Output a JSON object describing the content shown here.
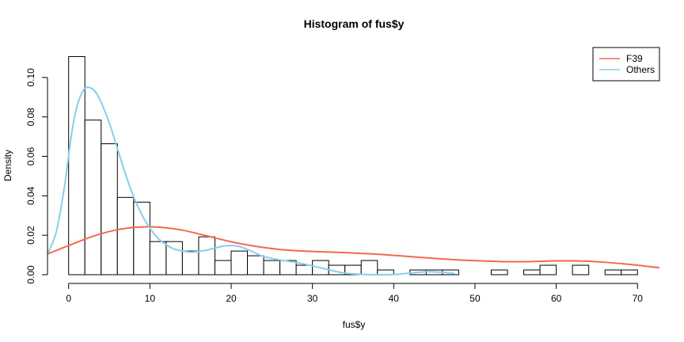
{
  "chart_data": {
    "type": "histogram",
    "title": "Histogram of fus$y",
    "xlabel": "fus$y",
    "ylabel": "Density",
    "xlim": [
      -2.6,
      72.7
    ],
    "ylim": [
      0,
      0.114
    ],
    "x_ticks": [
      0,
      10,
      20,
      30,
      40,
      50,
      60,
      70
    ],
    "y_ticks": [
      0.0,
      0.02,
      0.04,
      0.06,
      0.08,
      0.1
    ],
    "y_tick_labels": [
      "0.00",
      "0.02",
      "0.04",
      "0.06",
      "0.08",
      "0.10"
    ],
    "bin_width": 2,
    "bins_start": 0,
    "densities": [
      0.1106,
      0.0784,
      0.0664,
      0.0392,
      0.0368,
      0.0168,
      0.0168,
      0.012,
      0.0192,
      0.0072,
      0.012,
      0.0096,
      0.0072,
      0.0072,
      0.0048,
      0.0072,
      0.0048,
      0.0048,
      0.0072,
      0.0024,
      0,
      0.0024,
      0.0024,
      0.0024,
      0,
      0,
      0.0024,
      0,
      0.0024,
      0.0048,
      0,
      0.0048,
      0,
      0.0024,
      0.0024
    ],
    "series": [
      {
        "name": "F39",
        "color": "#f4694e",
        "x": [
          -2.6,
          0,
          2,
          4,
          6,
          8,
          10,
          12,
          14,
          16,
          18,
          20,
          22,
          24,
          26,
          28,
          30,
          32,
          34,
          36,
          38,
          40,
          42,
          44,
          46,
          48,
          50,
          52,
          54,
          56,
          58,
          60,
          62,
          64,
          66,
          68,
          70,
          72.7
        ],
        "y": [
          0.0105,
          0.0148,
          0.018,
          0.0208,
          0.0228,
          0.024,
          0.0243,
          0.0238,
          0.0226,
          0.0207,
          0.0187,
          0.0167,
          0.0151,
          0.0138,
          0.0128,
          0.0122,
          0.0118,
          0.0115,
          0.0112,
          0.0108,
          0.0104,
          0.0098,
          0.0092,
          0.0086,
          0.008,
          0.0075,
          0.0071,
          0.0068,
          0.0066,
          0.0066,
          0.0068,
          0.007,
          0.007,
          0.0068,
          0.0063,
          0.0056,
          0.0048,
          0.0035
        ]
      },
      {
        "name": "Others",
        "color": "#87ceeb",
        "x": [
          -2.6,
          -1.5,
          -0.5,
          0,
          0.5,
          1,
          1.5,
          2,
          2.5,
          3,
          3.5,
          4,
          5,
          6,
          7,
          8,
          9,
          10,
          11,
          12,
          13,
          14,
          15,
          16,
          17,
          18,
          19,
          20,
          21,
          22,
          23,
          24,
          26,
          28,
          30,
          32,
          34,
          36,
          38,
          40,
          42,
          44,
          46,
          47.5
        ],
        "y": [
          0.0105,
          0.022,
          0.045,
          0.0605,
          0.075,
          0.085,
          0.091,
          0.0945,
          0.095,
          0.094,
          0.0915,
          0.0875,
          0.077,
          0.064,
          0.051,
          0.0395,
          0.0305,
          0.0235,
          0.0185,
          0.0152,
          0.013,
          0.012,
          0.0115,
          0.0118,
          0.0125,
          0.0135,
          0.0145,
          0.0148,
          0.0143,
          0.0128,
          0.011,
          0.0092,
          0.0075,
          0.0062,
          0.0045,
          0.0025,
          0.0008,
          0.0002,
          0.0,
          0.0001,
          0.0008,
          0.0015,
          0.0012,
          0.0006
        ]
      }
    ],
    "legend": {
      "position": "top-right",
      "entries": [
        "F39",
        "Others"
      ]
    },
    "grid": false
  }
}
